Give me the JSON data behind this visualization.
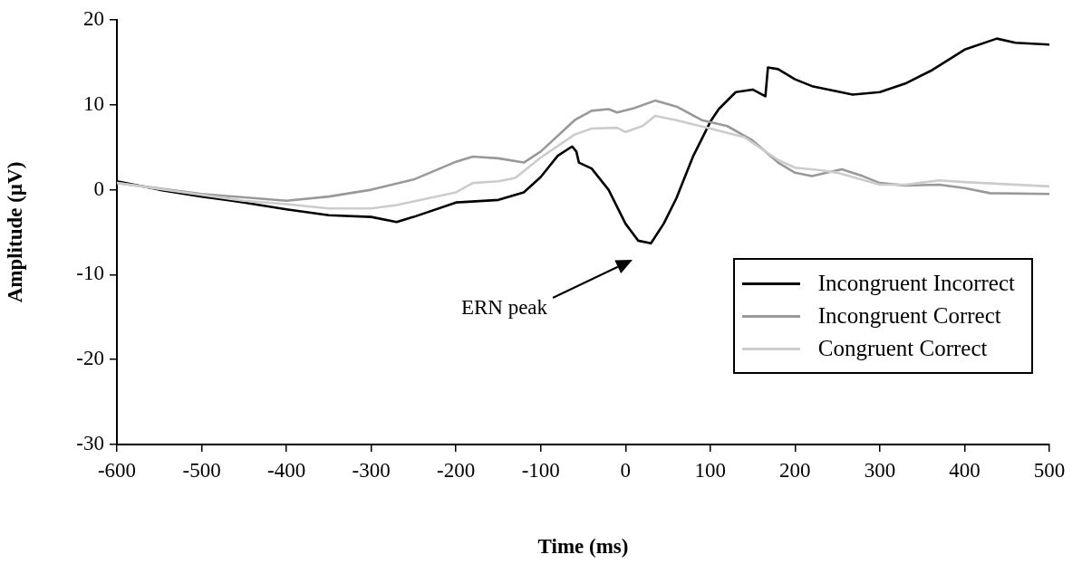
{
  "chart_data": {
    "type": "line",
    "xlabel": "Time (ms)",
    "ylabel": "Amplitude (µV)",
    "xlim": [
      -600,
      500
    ],
    "xticks": [
      -600,
      -500,
      -400,
      -300,
      -200,
      -100,
      0,
      100,
      200,
      300,
      400,
      500
    ],
    "ylim": [
      -30,
      20
    ],
    "yticks": [
      -30,
      -20,
      -10,
      0,
      10,
      20
    ],
    "grid": false,
    "legend": "bottom right",
    "marker": "none",
    "line_style": "solid",
    "annotations": [
      "ERN peak"
    ],
    "series": [
      {
        "name": "Incongruent Incorrect",
        "color": "#000000",
        "x": [
          -600,
          -550,
          -500,
          -450,
          -400,
          -350,
          -300,
          -270,
          -250,
          -200,
          -150,
          -120,
          -100,
          -80,
          -63,
          -58,
          -55,
          -40,
          -20,
          0,
          15,
          30,
          45,
          60,
          80,
          100,
          110,
          130,
          150,
          165,
          168,
          180,
          200,
          220,
          268,
          300,
          330,
          360,
          400,
          438,
          460,
          500
        ],
        "values": [
          1,
          0,
          -0.8,
          -1.5,
          -2.3,
          -3,
          -3.2,
          -3.8,
          -3.2,
          -1.5,
          -1.2,
          -0.3,
          1.5,
          4,
          5.1,
          4.5,
          3.2,
          2.5,
          0,
          -4,
          -6,
          -6.3,
          -4,
          -1,
          4,
          8,
          9.5,
          11.5,
          11.8,
          11,
          14.4,
          14.2,
          13,
          12.2,
          11.2,
          11.5,
          12.5,
          14,
          16.5,
          17.8,
          17.3,
          17.1
        ]
      },
      {
        "name": "Incongruent Correct",
        "color": "#999999",
        "x": [
          -600,
          -500,
          -400,
          -350,
          -300,
          -250,
          -200,
          -180,
          -150,
          -120,
          -100,
          -60,
          -40,
          -20,
          -10,
          10,
          35,
          60,
          90,
          120,
          150,
          180,
          200,
          220,
          255,
          280,
          300,
          330,
          370,
          400,
          430,
          500
        ],
        "values": [
          0.8,
          -0.5,
          -1.3,
          -0.8,
          0,
          1.2,
          3.3,
          3.9,
          3.7,
          3.2,
          4.5,
          8.2,
          9.3,
          9.5,
          9.1,
          9.6,
          10.5,
          9.8,
          8.2,
          7.5,
          5.8,
          3.2,
          2,
          1.6,
          2.4,
          1.6,
          0.8,
          0.5,
          0.6,
          0.2,
          -0.4,
          -0.5
        ]
      },
      {
        "name": "Congruent Correct",
        "color": "#cccccc",
        "x": [
          -600,
          -500,
          -450,
          -400,
          -350,
          -300,
          -270,
          -200,
          -180,
          -150,
          -130,
          -100,
          -60,
          -40,
          -10,
          0,
          20,
          35,
          60,
          100,
          140,
          180,
          200,
          230,
          250,
          300,
          330,
          370,
          400,
          500
        ],
        "values": [
          0.8,
          -0.6,
          -1.3,
          -1.7,
          -2.2,
          -2.2,
          -1.8,
          -0.3,
          0.8,
          1,
          1.4,
          3.8,
          6.5,
          7.2,
          7.3,
          6.8,
          7.5,
          8.7,
          8.2,
          7.2,
          6.2,
          3.5,
          2.6,
          2.3,
          2,
          0.6,
          0.6,
          1.1,
          0.9,
          0.4
        ]
      }
    ]
  }
}
